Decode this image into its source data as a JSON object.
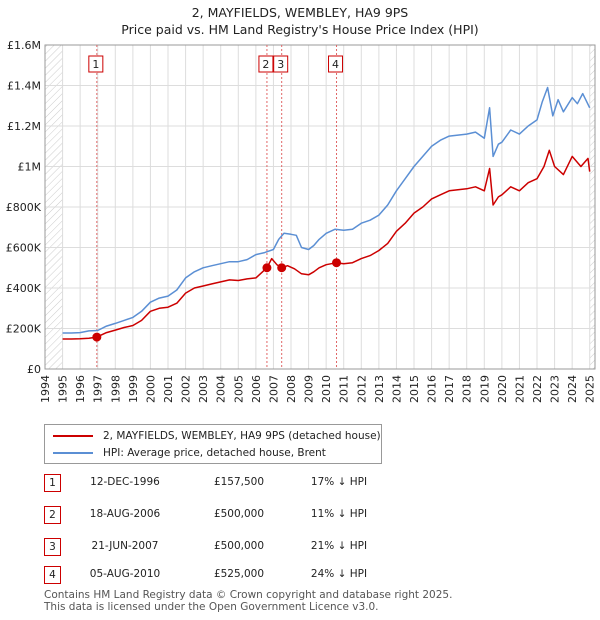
{
  "title_line1": "2, MAYFIELDS, WEMBLEY, HA9 9PS",
  "title_line2": "Price paid vs. HM Land Registry's House Price Index (HPI)",
  "chart_data": {
    "type": "line",
    "title": "2, MAYFIELDS, WEMBLEY, HA9 9PS - Price paid vs. HM Land Registry's House Price Index (HPI)",
    "xlabel": "",
    "ylabel": "",
    "xlim": [
      1994,
      2025
    ],
    "ylim": [
      0,
      1600000
    ],
    "x_ticks": [
      "1994",
      "1995",
      "1996",
      "1997",
      "1998",
      "1999",
      "2000",
      "2001",
      "2002",
      "2003",
      "2004",
      "2005",
      "2006",
      "2007",
      "2008",
      "2009",
      "2010",
      "2011",
      "2012",
      "2013",
      "2014",
      "2015",
      "2016",
      "2017",
      "2018",
      "2019",
      "2020",
      "2021",
      "2022",
      "2023",
      "2024",
      "2025"
    ],
    "y_ticks": [
      {
        "value": 0,
        "label": "£0"
      },
      {
        "value": 200000,
        "label": "£200K"
      },
      {
        "value": 400000,
        "label": "£400K"
      },
      {
        "value": 600000,
        "label": "£600K"
      },
      {
        "value": 800000,
        "label": "£800K"
      },
      {
        "value": 1000000,
        "label": "£1M"
      },
      {
        "value": 1200000,
        "label": "£1.2M"
      },
      {
        "value": 1400000,
        "label": "£1.4M"
      },
      {
        "value": 1600000,
        "label": "£1.6M"
      }
    ],
    "grid": true,
    "hatched_regions": [
      [
        1994,
        1995
      ],
      [
        2025,
        2025.3
      ]
    ],
    "series": [
      {
        "name": "2, MAYFIELDS, WEMBLEY, HA9 9PS (detached house)",
        "color": "#cc0000",
        "x": [
          1995.0,
          1995.5,
          1996.0,
          1996.5,
          1996.95,
          1997.5,
          1998.0,
          1998.5,
          1999.0,
          1999.5,
          2000.0,
          2000.5,
          2001.0,
          2001.5,
          2002.0,
          2002.5,
          2003.0,
          2003.5,
          2004.0,
          2004.5,
          2005.0,
          2005.5,
          2006.0,
          2006.63,
          2006.9,
          2007.2,
          2007.47,
          2007.8,
          2008.2,
          2008.6,
          2009.0,
          2009.3,
          2009.6,
          2010.0,
          2010.59,
          2011.0,
          2011.5,
          2012.0,
          2012.5,
          2013.0,
          2013.5,
          2014.0,
          2014.5,
          2015.0,
          2015.5,
          2016.0,
          2016.5,
          2017.0,
          2017.5,
          2018.0,
          2018.5,
          2019.0,
          2019.3,
          2019.5,
          2019.8,
          2020.0,
          2020.5,
          2021.0,
          2021.5,
          2022.0,
          2022.4,
          2022.7,
          2023.0,
          2023.5,
          2024.0,
          2024.5,
          2024.9,
          2025.0
        ],
        "values": [
          148000,
          148000,
          149000,
          152000,
          157500,
          180000,
          192000,
          205000,
          215000,
          240000,
          285000,
          300000,
          305000,
          325000,
          375000,
          400000,
          410000,
          420000,
          430000,
          440000,
          437000,
          445000,
          450000,
          500000,
          545000,
          515000,
          500000,
          510000,
          495000,
          470000,
          465000,
          480000,
          500000,
          515000,
          525000,
          520000,
          525000,
          545000,
          560000,
          585000,
          620000,
          680000,
          720000,
          770000,
          800000,
          840000,
          860000,
          880000,
          885000,
          890000,
          900000,
          880000,
          990000,
          810000,
          850000,
          860000,
          900000,
          880000,
          920000,
          940000,
          1000000,
          1080000,
          1000000,
          960000,
          1050000,
          1000000,
          1040000,
          975000
        ]
      },
      {
        "name": "HPI: Average price, detached house, Brent",
        "color": "#5b8fd4",
        "x": [
          1995.0,
          1995.5,
          1996.0,
          1996.5,
          1997.0,
          1997.5,
          1998.0,
          1998.5,
          1999.0,
          1999.5,
          2000.0,
          2000.5,
          2001.0,
          2001.5,
          2002.0,
          2002.5,
          2003.0,
          2003.5,
          2004.0,
          2004.5,
          2005.0,
          2005.5,
          2006.0,
          2006.5,
          2007.0,
          2007.3,
          2007.6,
          2008.0,
          2008.3,
          2008.6,
          2009.0,
          2009.3,
          2009.6,
          2010.0,
          2010.5,
          2011.0,
          2011.5,
          2012.0,
          2012.5,
          2013.0,
          2013.5,
          2014.0,
          2014.5,
          2015.0,
          2015.5,
          2016.0,
          2016.5,
          2017.0,
          2017.5,
          2018.0,
          2018.5,
          2019.0,
          2019.3,
          2019.5,
          2019.8,
          2020.0,
          2020.5,
          2021.0,
          2021.5,
          2022.0,
          2022.3,
          2022.6,
          2022.9,
          2023.2,
          2023.5,
          2024.0,
          2024.3,
          2024.6,
          2025.0
        ],
        "values": [
          178000,
          178000,
          180000,
          188000,
          190000,
          212000,
          225000,
          240000,
          255000,
          285000,
          330000,
          350000,
          360000,
          390000,
          450000,
          480000,
          500000,
          510000,
          520000,
          530000,
          530000,
          540000,
          565000,
          575000,
          590000,
          640000,
          670000,
          665000,
          660000,
          600000,
          590000,
          610000,
          640000,
          670000,
          690000,
          685000,
          690000,
          720000,
          735000,
          760000,
          810000,
          880000,
          940000,
          1000000,
          1050000,
          1100000,
          1130000,
          1150000,
          1155000,
          1160000,
          1170000,
          1140000,
          1290000,
          1050000,
          1110000,
          1120000,
          1180000,
          1160000,
          1200000,
          1230000,
          1320000,
          1390000,
          1250000,
          1330000,
          1270000,
          1340000,
          1310000,
          1360000,
          1290000
        ]
      }
    ],
    "annotations": [
      {
        "label": "1",
        "x": 1996.95,
        "value": 157500
      },
      {
        "label": "2",
        "x": 2006.63,
        "value": 500000
      },
      {
        "label": "3",
        "x": 2007.47,
        "value": 500000
      },
      {
        "label": "4",
        "x": 2010.59,
        "value": 525000
      }
    ]
  },
  "legend": {
    "items": [
      {
        "label": "2, MAYFIELDS, WEMBLEY, HA9 9PS (detached house)",
        "color": "#cc0000"
      },
      {
        "label": "HPI: Average price, detached house, Brent",
        "color": "#5b8fd4"
      }
    ]
  },
  "transactions": [
    {
      "num": "1",
      "date": "12-DEC-1996",
      "price": "£157,500",
      "hpi": "17% ↓ HPI"
    },
    {
      "num": "2",
      "date": "18-AUG-2006",
      "price": "£500,000",
      "hpi": "11% ↓ HPI"
    },
    {
      "num": "3",
      "date": "21-JUN-2007",
      "price": "£500,000",
      "hpi": "21% ↓ HPI"
    },
    {
      "num": "4",
      "date": "05-AUG-2010",
      "price": "£525,000",
      "hpi": "24% ↓ HPI"
    }
  ],
  "footer": {
    "line1": "Contains HM Land Registry data © Crown copyright and database right 2025.",
    "line2": "This data is licensed under the Open Government Licence v3.0."
  }
}
